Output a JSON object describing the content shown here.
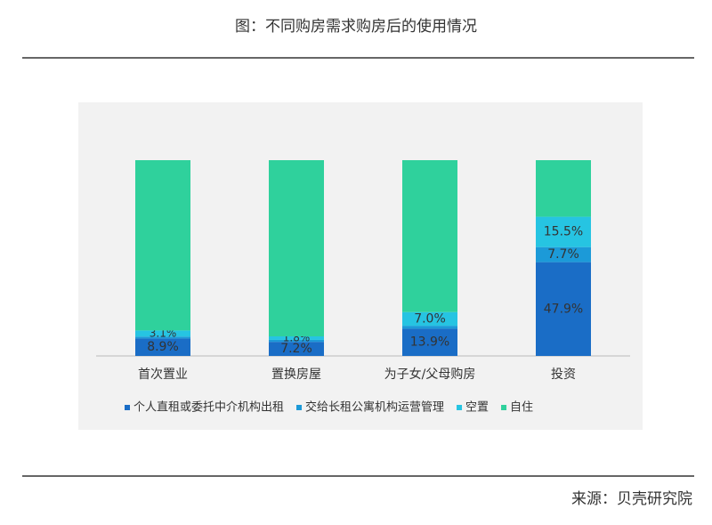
{
  "chart_data": {
    "type": "stacked-bar",
    "title": "图：不同购房需求购房后的使用情况",
    "source": "来源：贝壳研究院",
    "categories": [
      "首次置业",
      "置换房屋",
      "为子女/父母购房",
      "投资"
    ],
    "ylim": [
      0,
      100
    ],
    "series": [
      {
        "name": "个人直租或委托中介机构出租",
        "color": "#1a6dc6",
        "values": [
          8.9,
          7.2,
          13.9,
          47.9
        ],
        "value_labels": [
          "8.9%",
          "7.2%",
          "13.9%",
          "47.9%"
        ]
      },
      {
        "name": "交给长租公寓机构运营管理",
        "color": "#1c9ad8",
        "values": [
          1.0,
          1.0,
          1.5,
          7.7
        ],
        "value_labels": [
          null,
          null,
          null,
          "7.7%"
        ]
      },
      {
        "name": "空置",
        "color": "#26c4e2",
        "values": [
          3.1,
          1.8,
          7.0,
          15.5
        ],
        "value_labels": [
          "3.1%",
          "1.8%",
          "7.0%",
          "15.5%"
        ]
      },
      {
        "name": "自住",
        "color": "#2fd19c",
        "values": [
          87.0,
          90.0,
          77.6,
          28.9
        ],
        "value_labels": [
          null,
          null,
          null,
          null
        ]
      }
    ]
  }
}
